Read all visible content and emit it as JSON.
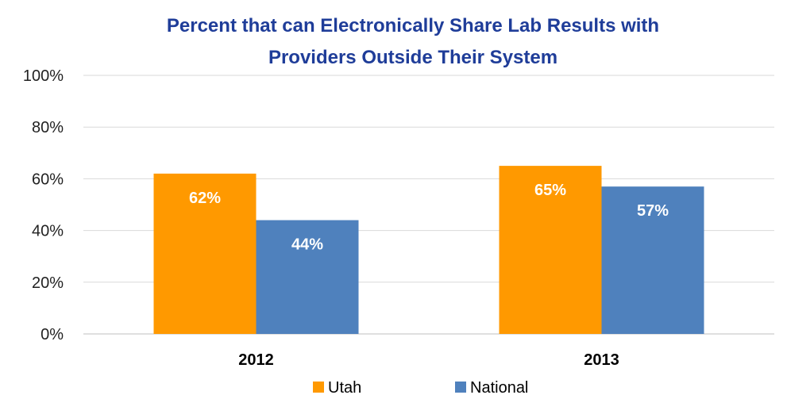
{
  "chart_data": {
    "type": "bar",
    "title_lines": [
      "Percent that can Electronically Share Lab Results with",
      "Providers Outside Their System"
    ],
    "categories": [
      "2012",
      "2013"
    ],
    "series": [
      {
        "name": "Utah",
        "values": [
          62,
          65
        ],
        "labels": [
          "62%",
          "65%"
        ],
        "color": "#ff9900"
      },
      {
        "name": "National",
        "values": [
          44,
          57
        ],
        "labels": [
          "44%",
          "57%"
        ],
        "color": "#4f81bd"
      }
    ],
    "ylim": [
      0,
      100
    ],
    "yticks": [
      0,
      20,
      40,
      60,
      80,
      100
    ],
    "ytick_labels": [
      "0%",
      "20%",
      "40%",
      "60%",
      "80%",
      "100%"
    ],
    "grid": true,
    "legend_position": "bottom"
  }
}
